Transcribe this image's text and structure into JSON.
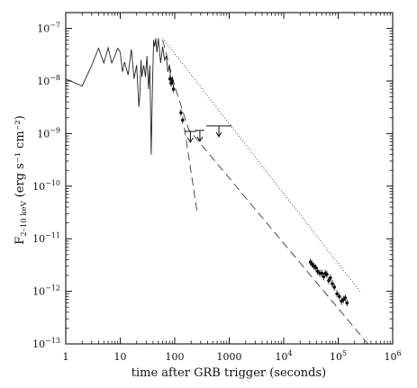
{
  "chart_data": {
    "type": "line",
    "xscale": "log",
    "yscale": "log",
    "xlim": [
      1,
      1000000
    ],
    "ylim": [
      1e-13,
      2e-07
    ],
    "xlabel": "time after GRB trigger (seconds)",
    "ylabel": {
      "main": "F",
      "subscript": "2–10 keV",
      "units": "(erg s⁻¹ cm⁻²)"
    },
    "x_ticks": [
      {
        "value": 1,
        "label": "1",
        "sup": ""
      },
      {
        "value": 10,
        "label": "10",
        "sup": ""
      },
      {
        "value": 100,
        "label": "100",
        "sup": ""
      },
      {
        "value": 1000,
        "label": "1000",
        "sup": ""
      },
      {
        "value": 10000,
        "label": "10",
        "sup": "4"
      },
      {
        "value": 100000,
        "label": "10",
        "sup": "5"
      },
      {
        "value": 1000000,
        "label": "10",
        "sup": "6"
      }
    ],
    "y_ticks": [
      {
        "value": 1e-07,
        "label": "10",
        "sup": "−7"
      },
      {
        "value": 1e-08,
        "label": "10",
        "sup": "−8"
      },
      {
        "value": 1e-09,
        "label": "10",
        "sup": "−9"
      },
      {
        "value": 1e-10,
        "label": "10",
        "sup": "−10"
      },
      {
        "value": 1e-11,
        "label": "10",
        "sup": "−11"
      },
      {
        "value": 1e-12,
        "label": "10",
        "sup": "−12"
      },
      {
        "value": 1e-13,
        "label": "10",
        "sup": "−13"
      }
    ],
    "series": [
      {
        "style": "solid",
        "x": [
          1,
          2,
          3,
          4,
          5,
          6,
          7,
          8,
          9,
          10,
          11,
          12,
          14,
          16,
          18,
          20,
          22,
          23,
          24,
          25,
          27,
          29,
          31,
          33,
          35,
          37,
          39,
          41,
          43,
          45,
          47,
          50,
          55,
          60,
          65,
          70,
          75,
          80,
          85,
          90,
          95
        ],
        "y": [
          1.1e-08,
          8e-09,
          2e-08,
          4.2e-08,
          2.2e-08,
          4.3e-08,
          2.2e-08,
          3e-08,
          4.2e-08,
          3.5e-08,
          1.5e-08,
          2.3e-08,
          1.3e-08,
          4e-08,
          1.1e-08,
          2e-08,
          3.2e-09,
          6e-09,
          2.5e-08,
          1.2e-08,
          2e-08,
          1.2e-08,
          3e-08,
          7e-09,
          2e-08,
          4e-10,
          8e-09,
          6e-08,
          4.5e-08,
          6.5e-08,
          3.5e-08,
          6.5e-08,
          2.2e-08,
          4.5e-08,
          2.5e-08,
          3e-08,
          1.5e-08,
          2e-08,
          1e-08,
          1.2e-08,
          7e-09
        ]
      },
      {
        "style": "dotted",
        "x": [
          60,
          250000
        ],
        "y": [
          6.5e-08,
          1e-12
        ]
      },
      {
        "style": "dashed",
        "x": [
          60,
          100,
          180,
          350000
        ],
        "y": [
          6e-08,
          8e-09,
          1.2e-09,
          1e-13
        ]
      },
      {
        "style": "dashed",
        "x": [
          150,
          260
        ],
        "y": [
          1.3e-09,
          3e-11
        ]
      }
    ],
    "points": {
      "x": [
        82,
        86,
        90,
        95,
        130,
        140,
        31000,
        33000,
        36000,
        39000,
        42000,
        46000,
        50000,
        54000,
        58000,
        62000,
        67000,
        72000,
        78000,
        85000,
        95000,
        105000,
        115000,
        125000,
        135000,
        145000
      ],
      "y": [
        1.1e-08,
        9e-09,
        1e-08,
        7e-09,
        2.5e-09,
        1.8e-09,
        3.6e-12,
        3.3e-12,
        3e-12,
        2.8e-12,
        2.4e-12,
        2.2e-12,
        2.2e-12,
        1.9e-12,
        2.2e-12,
        2.1e-12,
        1.6e-12,
        1.8e-12,
        1.4e-12,
        1.2e-12,
        9e-13,
        8e-13,
        6.5e-13,
        7e-13,
        7.5e-13,
        6e-13
      ]
    },
    "upper_limits": [
      {
        "x_range": [
          150,
          250
        ],
        "y": 1.1e-09
      },
      {
        "x_range": [
          240,
          350
        ],
        "y": 1.15e-09
      },
      {
        "x_range": [
          380,
          1100
        ],
        "y": 1.4e-09
      }
    ]
  }
}
